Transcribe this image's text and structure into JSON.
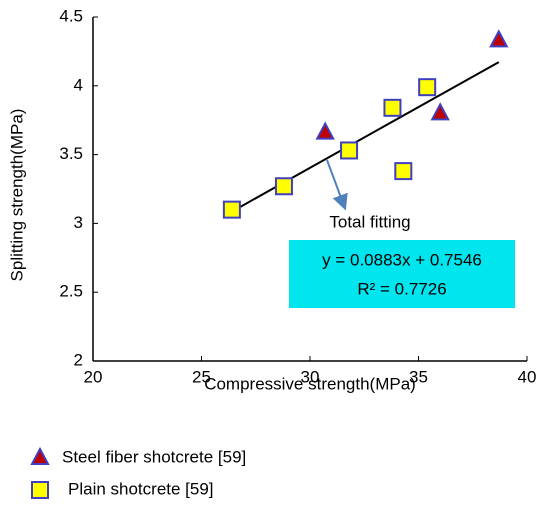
{
  "chart_data": {
    "type": "scatter",
    "x_label": "Compressive strength(MPa)",
    "y_label": "Splitting strength(MPa)",
    "xlim": [
      20,
      40
    ],
    "xticks": [
      20,
      25,
      30,
      35,
      40
    ],
    "ylim": [
      2,
      4.5
    ],
    "yticks": [
      2,
      2.5,
      3,
      3.5,
      4,
      4.5
    ],
    "series": [
      {
        "name": "Steel fiber shotcrete [59]",
        "marker": "triangle",
        "color": "#c00000",
        "edge": "#3f3fbf",
        "x": [
          38.7,
          36.0,
          30.7
        ],
        "values": [
          4.33,
          3.8,
          3.66
        ]
      },
      {
        "name": "Plain shotcrete [59]",
        "marker": "square",
        "color": "#ffff00",
        "edge": "#3f3fbf",
        "x": [
          26.4,
          28.8,
          31.8,
          33.8,
          35.4,
          34.3
        ],
        "values": [
          3.1,
          3.27,
          3.53,
          3.84,
          3.99,
          3.38
        ]
      }
    ],
    "trendline": {
      "x": [
        26.4,
        38.7
      ],
      "values": [
        3.086,
        4.172
      ]
    },
    "annotation": {
      "title": "Total fitting",
      "equation": "y = 0.0883x + 0.7546",
      "r2": "R² = 0.7726",
      "color": "#00e5ee"
    }
  }
}
